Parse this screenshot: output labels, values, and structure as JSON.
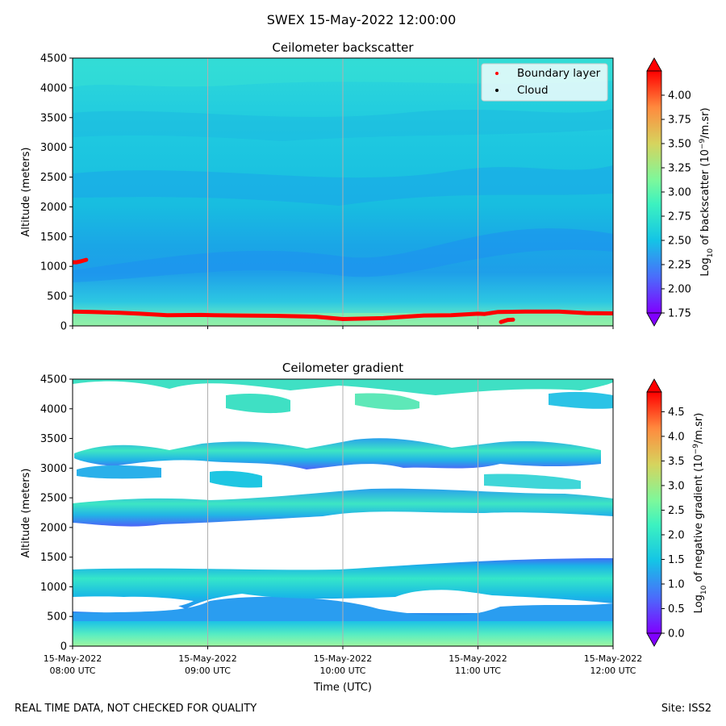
{
  "figure": {
    "suptitle": "SWEX 15-May-2022 12:00:00",
    "footer_left": "REAL TIME DATA, NOT CHECKED FOR QUALITY",
    "footer_right": "Site: ISS2",
    "xlabel": "Time (UTC)"
  },
  "chart_data": [
    {
      "type": "heatmap",
      "title": "Ceilometer backscatter",
      "ylabel": "Altitude (meters)",
      "ylim": [
        0,
        4500
      ],
      "yticks": [
        "0",
        "500",
        "1000",
        "1500",
        "2000",
        "2500",
        "3000",
        "3500",
        "4000",
        "4500"
      ],
      "colorbar": {
        "label": "Log10 of backscatter (10^-9/m.sr)",
        "label_base": "Log",
        "label_sub": "10",
        "label_mid": " of backscatter (10",
        "label_sup": "−9",
        "label_end": "/m.sr)",
        "range": [
          1.75,
          4.25
        ],
        "ticks": [
          "1.75",
          "2.00",
          "2.25",
          "2.50",
          "2.75",
          "3.00",
          "3.25",
          "3.50",
          "3.75",
          "4.00"
        ]
      },
      "legend": {
        "placement": "top-right",
        "entries": [
          {
            "label": "Boundary layer",
            "color": "#ff0000"
          },
          {
            "label": "Cloud",
            "color": "#000000"
          }
        ]
      },
      "boundary_layer": {
        "segments": [
          {
            "t": [
              0,
              0.03,
              0.06,
              0.1
            ],
            "alt": [
              1070,
              1070,
              1085,
              1110
            ]
          },
          {
            "t": [
              0,
              0.15,
              0.35,
              0.5,
              0.7,
              0.95,
              1.05,
              1.25,
              1.5,
              1.8,
              2.0,
              2.3,
              2.6,
              2.8,
              3.0,
              3.05,
              3.15,
              3.35,
              3.6,
              3.8,
              4.0
            ],
            "alt": [
              240,
              235,
              220,
              205,
              180,
              185,
              180,
              175,
              170,
              155,
              115,
              130,
              175,
              180,
              205,
              200,
              235,
              240,
              240,
              215,
              210
            ]
          },
          {
            "t": [
              3.17,
              3.22,
              3.26
            ],
            "alt": [
              65,
              100,
              105
            ]
          }
        ]
      }
    },
    {
      "type": "heatmap",
      "title": "Ceilometer gradient",
      "ylabel": "Altitude (meters)",
      "ylim": [
        0,
        4500
      ],
      "yticks": [
        "0",
        "500",
        "1000",
        "1500",
        "2000",
        "2500",
        "3000",
        "3500",
        "4000",
        "4500"
      ],
      "colorbar": {
        "label": "Log10 of negative gradient (10^-9/m.sr)",
        "label_base": "Log",
        "label_sub": "10",
        "label_mid": " of negative gradient (10",
        "label_sup": "−9",
        "label_end": "/m.sr)",
        "range": [
          0.0,
          4.9
        ],
        "ticks": [
          "0.0",
          "0.5",
          "1.0",
          "1.5",
          "2.0",
          "2.5",
          "3.0",
          "3.5",
          "4.0",
          "4.5"
        ]
      },
      "bands": [
        {
          "t0": 0,
          "t1": 4,
          "alt0": 0,
          "alt1": 580,
          "value": 1.7
        },
        {
          "t0": 0,
          "t1": 4,
          "alt0": 820,
          "alt1": 1320,
          "value": 1.3
        },
        {
          "t0": 0,
          "t1": 4,
          "alt0": 2080,
          "alt1": 2600,
          "value": 1.3
        },
        {
          "t0": 0,
          "t1": 3.9,
          "alt0": 2750,
          "alt1": 3420,
          "value": 1.1
        },
        {
          "t0": 0,
          "t1": 4,
          "alt0": 3950,
          "alt1": 4500,
          "value": 1.6
        }
      ]
    }
  ],
  "time_axis": {
    "ticks": [
      {
        "date": "15-May-2022",
        "time": "08:00 UTC"
      },
      {
        "date": "15-May-2022",
        "time": "09:00 UTC"
      },
      {
        "date": "15-May-2022",
        "time": "10:00 UTC"
      },
      {
        "date": "15-May-2022",
        "time": "11:00 UTC"
      },
      {
        "date": "15-May-2022",
        "time": "12:00 UTC"
      }
    ],
    "range_hours": [
      0,
      4
    ]
  }
}
